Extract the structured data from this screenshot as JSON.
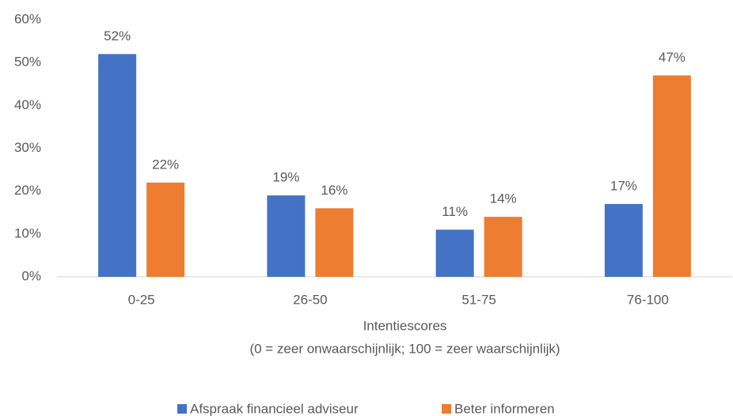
{
  "chart_data": {
    "type": "bar",
    "categories": [
      "0-25",
      "26-50",
      "51-75",
      "76-100"
    ],
    "series": [
      {
        "name": "Afspraak financieel adviseur",
        "color": "#4472c4",
        "values": [
          52,
          19,
          11,
          17
        ],
        "value_labels": [
          "52%",
          "19%",
          "11%",
          "17%"
        ]
      },
      {
        "name": "Beter informeren",
        "color": "#ed7d31",
        "values": [
          22,
          16,
          14,
          47
        ],
        "value_labels": [
          "22%",
          "16%",
          "14%",
          "47%"
        ]
      }
    ],
    "xlabel": [
      "Intentiescores",
      "(0 = zeer onwaarschijnlijk; 100 = zeer waarschijnlijk)"
    ],
    "ylim": [
      0,
      60
    ],
    "yticks": [
      {
        "value": 0,
        "label": "0%"
      },
      {
        "value": 10,
        "label": "10%"
      },
      {
        "value": 20,
        "label": "20%"
      },
      {
        "value": 30,
        "label": "30%"
      },
      {
        "value": 40,
        "label": "40%"
      },
      {
        "value": 50,
        "label": "50%"
      },
      {
        "value": 60,
        "label": "60%"
      }
    ],
    "grid": false,
    "legend": "bottom"
  }
}
